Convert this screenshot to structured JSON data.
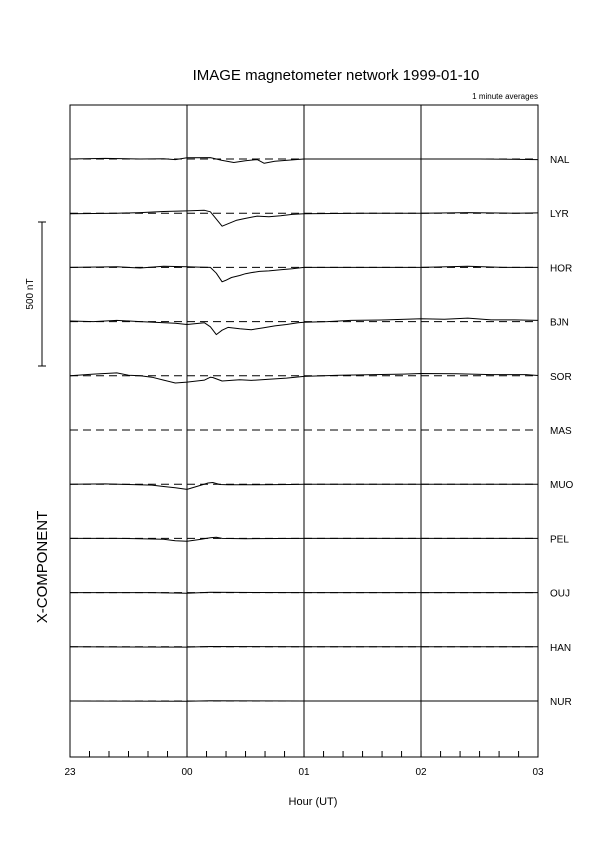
{
  "chart_data": {
    "type": "line",
    "title": "IMAGE magnetometer network 1999-01-10",
    "subtitle": "1 minute averages",
    "xlabel": "Hour (UT)",
    "component_label": "X-COMPONENT",
    "scale_bar_label": "500 nT",
    "scale_bar_nT": 500,
    "x_tick_labels": [
      "23",
      "00",
      "01",
      "02",
      "03"
    ],
    "x_range_hours": [
      -1,
      3
    ],
    "minor_tick_step_hours": 0.1667,
    "vertical_grid_hours": [
      0,
      1,
      2
    ],
    "baseline_style": "dashed",
    "stations": [
      {
        "name": "NAL",
        "points": [
          [
            -1,
            0
          ],
          [
            -0.7,
            2
          ],
          [
            -0.4,
            0
          ],
          [
            -0.2,
            1
          ],
          [
            -0.1,
            -2
          ],
          [
            0,
            4
          ],
          [
            0.2,
            5
          ],
          [
            0.3,
            -5
          ],
          [
            0.4,
            -12
          ],
          [
            0.5,
            -6
          ],
          [
            0.6,
            -2
          ],
          [
            0.66,
            -15
          ],
          [
            0.75,
            -8
          ],
          [
            0.9,
            -3
          ],
          [
            1.0,
            0
          ],
          [
            2.0,
            0
          ],
          [
            2.5,
            0
          ],
          [
            3,
            -2
          ]
        ]
      },
      {
        "name": "LYR",
        "points": [
          [
            -1,
            -2
          ],
          [
            -0.6,
            0
          ],
          [
            -0.4,
            2
          ],
          [
            -0.2,
            6
          ],
          [
            0,
            8
          ],
          [
            0.15,
            10
          ],
          [
            0.2,
            5
          ],
          [
            0.3,
            -45
          ],
          [
            0.36,
            -35
          ],
          [
            0.42,
            -25
          ],
          [
            0.5,
            -18
          ],
          [
            0.6,
            -10
          ],
          [
            0.7,
            -12
          ],
          [
            0.8,
            -9
          ],
          [
            0.9,
            -4
          ],
          [
            1.0,
            -2
          ],
          [
            1.5,
            0
          ],
          [
            2.0,
            0
          ],
          [
            2.4,
            2
          ],
          [
            2.8,
            0
          ],
          [
            3,
            1
          ]
        ]
      },
      {
        "name": "HOR",
        "points": [
          [
            -1,
            0
          ],
          [
            -0.6,
            2
          ],
          [
            -0.4,
            -2
          ],
          [
            -0.2,
            4
          ],
          [
            0,
            2
          ],
          [
            0.1,
            1
          ],
          [
            0.2,
            0
          ],
          [
            0.25,
            -20
          ],
          [
            0.3,
            -50
          ],
          [
            0.33,
            -45
          ],
          [
            0.38,
            -35
          ],
          [
            0.45,
            -28
          ],
          [
            0.5,
            -22
          ],
          [
            0.55,
            -18
          ],
          [
            0.62,
            -14
          ],
          [
            0.7,
            -12
          ],
          [
            0.8,
            -8
          ],
          [
            0.9,
            -5
          ],
          [
            1.0,
            0
          ],
          [
            1.5,
            0
          ],
          [
            2.0,
            0
          ],
          [
            2.4,
            4
          ],
          [
            2.7,
            0
          ],
          [
            3,
            0
          ]
        ]
      },
      {
        "name": "BJN",
        "points": [
          [
            -1,
            2
          ],
          [
            -0.8,
            0
          ],
          [
            -0.6,
            4
          ],
          [
            -0.4,
            0
          ],
          [
            -0.1,
            -6
          ],
          [
            0,
            -10
          ],
          [
            0.15,
            -4
          ],
          [
            0.2,
            -18
          ],
          [
            0.25,
            -45
          ],
          [
            0.3,
            -30
          ],
          [
            0.35,
            -20
          ],
          [
            0.45,
            -25
          ],
          [
            0.55,
            -28
          ],
          [
            0.65,
            -22
          ],
          [
            0.75,
            -15
          ],
          [
            0.85,
            -10
          ],
          [
            0.95,
            -4
          ],
          [
            1.0,
            -2
          ],
          [
            1.2,
            0
          ],
          [
            1.4,
            4
          ],
          [
            1.7,
            6
          ],
          [
            2.0,
            10
          ],
          [
            2.2,
            8
          ],
          [
            2.4,
            12
          ],
          [
            2.6,
            6
          ],
          [
            2.8,
            6
          ],
          [
            3,
            4
          ]
        ]
      },
      {
        "name": "SOR",
        "points": [
          [
            -1,
            0
          ],
          [
            -0.8,
            6
          ],
          [
            -0.6,
            10
          ],
          [
            -0.5,
            2
          ],
          [
            -0.4,
            0
          ],
          [
            -0.3,
            -5
          ],
          [
            -0.2,
            -15
          ],
          [
            -0.1,
            -25
          ],
          [
            0,
            -22
          ],
          [
            0.15,
            -15
          ],
          [
            0.2,
            -5
          ],
          [
            0.22,
            -6
          ],
          [
            0.3,
            -18
          ],
          [
            0.45,
            -14
          ],
          [
            0.55,
            -16
          ],
          [
            0.7,
            -12
          ],
          [
            0.85,
            -8
          ],
          [
            1.0,
            -2
          ],
          [
            1.3,
            2
          ],
          [
            1.6,
            4
          ],
          [
            1.85,
            6
          ],
          [
            2.0,
            8
          ],
          [
            2.3,
            7
          ],
          [
            2.6,
            4
          ],
          [
            2.9,
            4
          ],
          [
            3,
            1
          ]
        ]
      },
      {
        "name": "MAS",
        "points": []
      },
      {
        "name": "MUO",
        "points": [
          [
            -1,
            0
          ],
          [
            -0.7,
            1
          ],
          [
            -0.5,
            -1
          ],
          [
            -0.3,
            -3
          ],
          [
            -0.2,
            -8
          ],
          [
            -0.1,
            -12
          ],
          [
            0,
            -18
          ],
          [
            0.1,
            -6
          ],
          [
            0.18,
            4
          ],
          [
            0.22,
            6
          ],
          [
            0.28,
            -1
          ],
          [
            0.35,
            -2
          ],
          [
            0.6,
            -2
          ],
          [
            0.9,
            -1
          ],
          [
            1.0,
            0
          ],
          [
            2.0,
            0
          ],
          [
            3,
            0
          ]
        ]
      },
      {
        "name": "PEL",
        "points": [
          [
            -1,
            0
          ],
          [
            -0.6,
            0
          ],
          [
            -0.4,
            -1
          ],
          [
            -0.2,
            -3
          ],
          [
            -0.1,
            -8
          ],
          [
            0,
            -10
          ],
          [
            0.1,
            -4
          ],
          [
            0.2,
            2
          ],
          [
            0.25,
            4
          ],
          [
            0.3,
            0
          ],
          [
            0.5,
            -1
          ],
          [
            1.0,
            0
          ],
          [
            2.0,
            0
          ],
          [
            3,
            0
          ]
        ]
      },
      {
        "name": "OUJ",
        "points": [
          [
            -1,
            0
          ],
          [
            -0.3,
            0
          ],
          [
            0,
            -2
          ],
          [
            0.2,
            1
          ],
          [
            1.0,
            0
          ],
          [
            3,
            0
          ]
        ]
      },
      {
        "name": "HAN",
        "points": [
          [
            -1,
            0
          ],
          [
            0,
            -1
          ],
          [
            0.2,
            1
          ],
          [
            1.0,
            0
          ],
          [
            3,
            0
          ]
        ]
      },
      {
        "name": "NUR",
        "points": [
          [
            -1,
            0
          ],
          [
            0,
            -1
          ],
          [
            0.2,
            1
          ],
          [
            1.0,
            0
          ],
          [
            3,
            0
          ]
        ]
      }
    ]
  }
}
